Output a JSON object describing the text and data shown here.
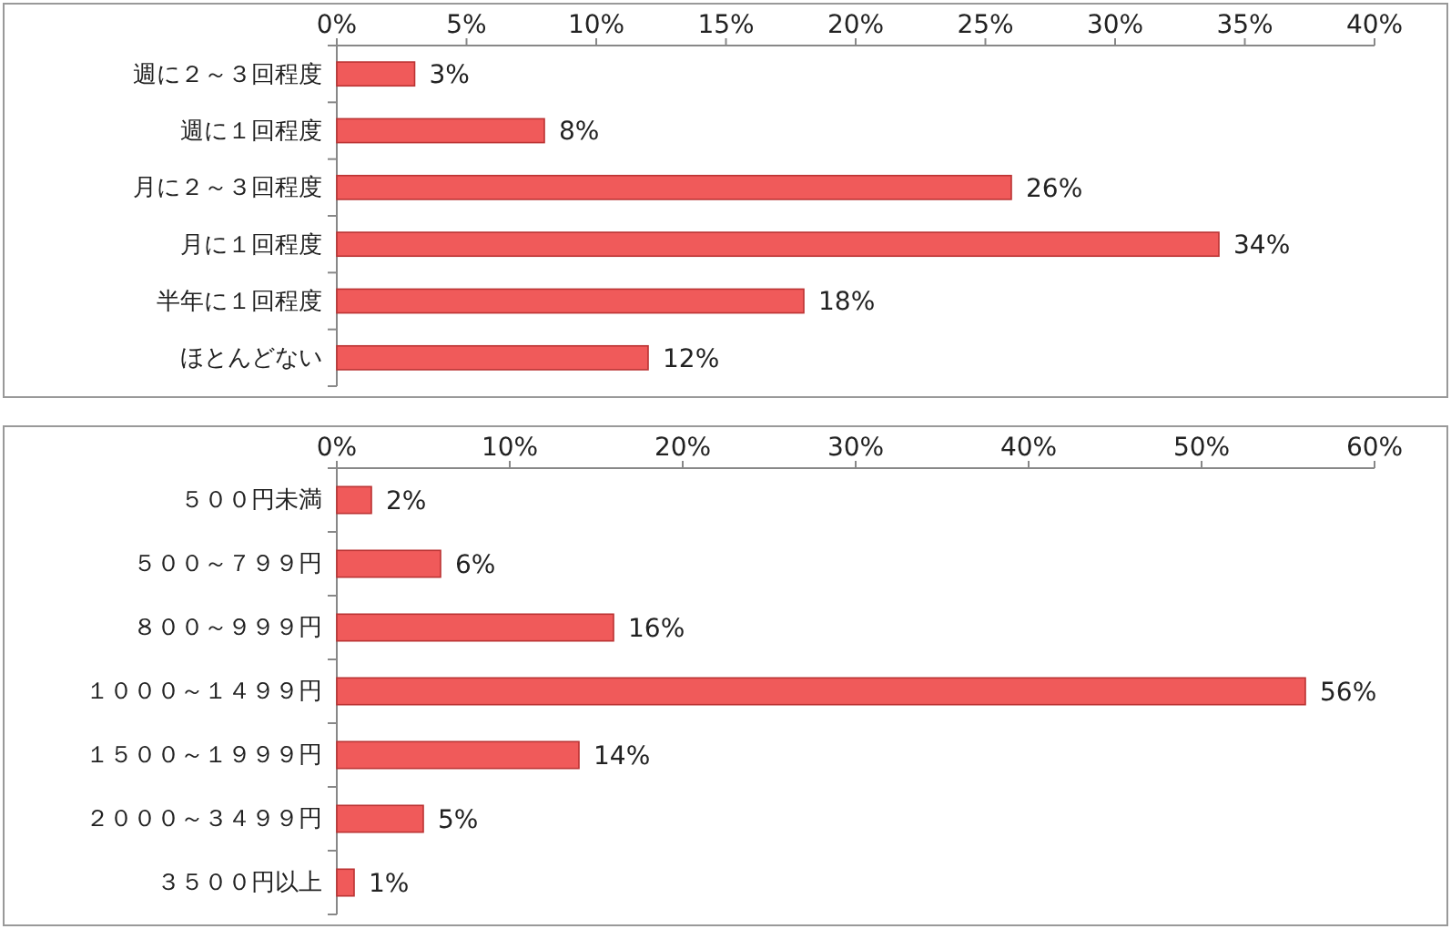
{
  "chart_data": [
    {
      "type": "bar",
      "orientation": "horizontal",
      "categories": [
        "週に２～３回程度",
        "週に１回程度",
        "月に２～３回程度",
        "月に１回程度",
        "半年に１回程度",
        "ほとんどない"
      ],
      "series": [
        {
          "color": "#f05a5a",
          "values": [
            3,
            8,
            26,
            34,
            18,
            12
          ],
          "value_labels": [
            "3%",
            "8%",
            "26%",
            "34%",
            "18%",
            "12%"
          ]
        }
      ],
      "xlim": [
        0,
        40
      ],
      "xticks": [
        {
          "value": 0,
          "label": "0%"
        },
        {
          "value": 5,
          "label": "5%"
        },
        {
          "value": 10,
          "label": "10%"
        },
        {
          "value": 15,
          "label": "15%"
        },
        {
          "value": 20,
          "label": "20%"
        },
        {
          "value": 25,
          "label": "25%"
        },
        {
          "value": 30,
          "label": "30%"
        },
        {
          "value": 35,
          "label": "35%"
        },
        {
          "value": 40,
          "label": "40%"
        }
      ],
      "grid": false
    },
    {
      "type": "bar",
      "orientation": "horizontal",
      "categories": [
        "５００円未満",
        "５００～７９９円",
        "８００～９９９円",
        "１０００～１４９９円",
        "１５００～１９９９円",
        "２０００～３４９９円",
        "３５００円以上"
      ],
      "series": [
        {
          "color": "#f05a5a",
          "values": [
            2,
            6,
            16,
            56,
            14,
            5,
            1
          ],
          "value_labels": [
            "2%",
            "6%",
            "16%",
            "56%",
            "14%",
            "5%",
            "1%"
          ]
        }
      ],
      "xlim": [
        0,
        60
      ],
      "xticks": [
        {
          "value": 0,
          "label": "0%"
        },
        {
          "value": 10,
          "label": "10%"
        },
        {
          "value": 20,
          "label": "20%"
        },
        {
          "value": 30,
          "label": "30%"
        },
        {
          "value": 40,
          "label": "40%"
        },
        {
          "value": 50,
          "label": "50%"
        },
        {
          "value": 60,
          "label": "60%"
        }
      ],
      "grid": false
    }
  ]
}
